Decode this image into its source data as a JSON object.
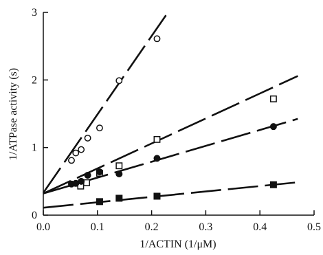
{
  "chart_data": {
    "type": "scatter",
    "title": "",
    "xlabel": "1/ACTIN (1/μM)",
    "ylabel": "1/ATPase activity (s)",
    "xlim": [
      0,
      0.5
    ],
    "ylim": [
      0,
      3
    ],
    "x_ticks": [
      "0.0",
      "0.1",
      "0.2",
      "0.3",
      "0.4",
      "0.5"
    ],
    "y_ticks": [
      "0",
      "1",
      "2",
      "3"
    ],
    "grid": false,
    "legend": "none",
    "line_style": "dashed (long dash)",
    "series": [
      {
        "marker": "open-circle",
        "points": [
          [
            0.052,
            0.81
          ],
          [
            0.06,
            0.92
          ],
          [
            0.07,
            0.97
          ],
          [
            0.082,
            1.14
          ],
          [
            0.104,
            1.29
          ],
          [
            0.14,
            1.99
          ],
          [
            0.21,
            2.61
          ]
        ],
        "fit": {
          "intercept": 0.33,
          "slope": 11.6
        }
      },
      {
        "marker": "open-square",
        "points": [
          [
            0.069,
            0.43
          ],
          [
            0.08,
            0.48
          ],
          [
            0.104,
            0.62
          ],
          [
            0.14,
            0.73
          ],
          [
            0.21,
            1.12
          ],
          [
            0.425,
            1.72
          ]
        ],
        "fit": {
          "intercept": 0.32,
          "slope": 3.7
        }
      },
      {
        "marker": "filled-circle",
        "points": [
          [
            0.052,
            0.46
          ],
          [
            0.06,
            0.47
          ],
          [
            0.07,
            0.5
          ],
          [
            0.082,
            0.59
          ],
          [
            0.104,
            0.64
          ],
          [
            0.14,
            0.61
          ],
          [
            0.21,
            0.84
          ],
          [
            0.425,
            1.31
          ]
        ],
        "fit": {
          "intercept": 0.32,
          "slope": 2.35
        }
      },
      {
        "marker": "filled-square",
        "points": [
          [
            0.104,
            0.2
          ],
          [
            0.14,
            0.25
          ],
          [
            0.21,
            0.28
          ],
          [
            0.425,
            0.45
          ]
        ],
        "fit": {
          "intercept": 0.11,
          "slope": 0.8
        }
      }
    ]
  }
}
